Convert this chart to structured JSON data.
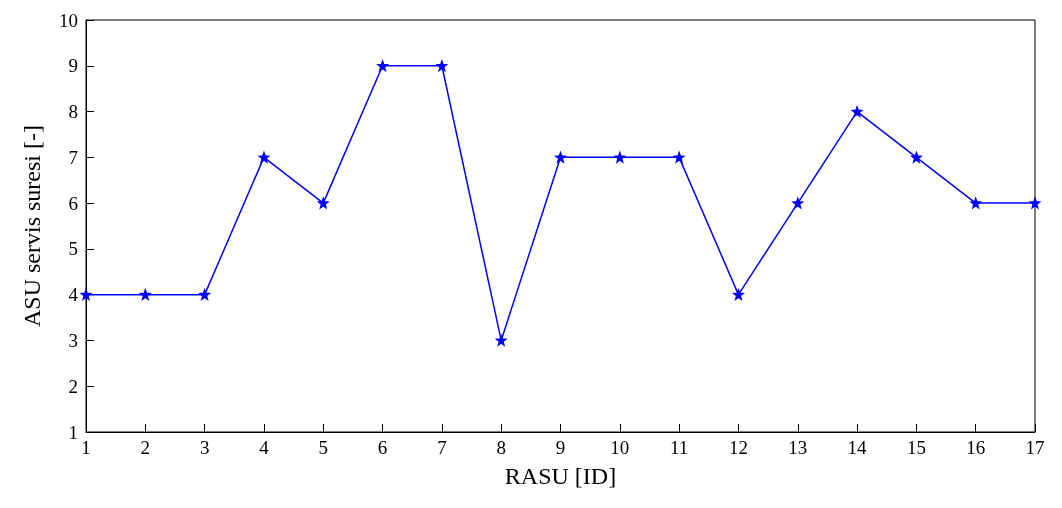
{
  "chart_data": {
    "type": "line",
    "xlabel": "RASU [ID]",
    "ylabel": "ASU servis suresi [-]",
    "x": [
      1,
      2,
      3,
      4,
      5,
      6,
      7,
      8,
      9,
      10,
      11,
      12,
      13,
      14,
      15,
      16,
      17
    ],
    "series": [
      {
        "color": "#0000ff",
        "values": [
          4,
          4,
          4,
          7,
          6,
          9,
          9,
          3,
          7,
          7,
          7,
          4,
          6,
          8,
          7,
          6,
          6
        ]
      }
    ],
    "xlim": [
      1,
      17
    ],
    "xticks": [
      1,
      2,
      3,
      4,
      5,
      6,
      7,
      8,
      9,
      10,
      11,
      12,
      13,
      14,
      15,
      16,
      17
    ],
    "ylim": [
      1,
      10
    ],
    "yticks": [
      1,
      2,
      3,
      4,
      5,
      6,
      7,
      8,
      9,
      10
    ],
    "marker": "star",
    "line_style": "solid",
    "grid": false
  }
}
